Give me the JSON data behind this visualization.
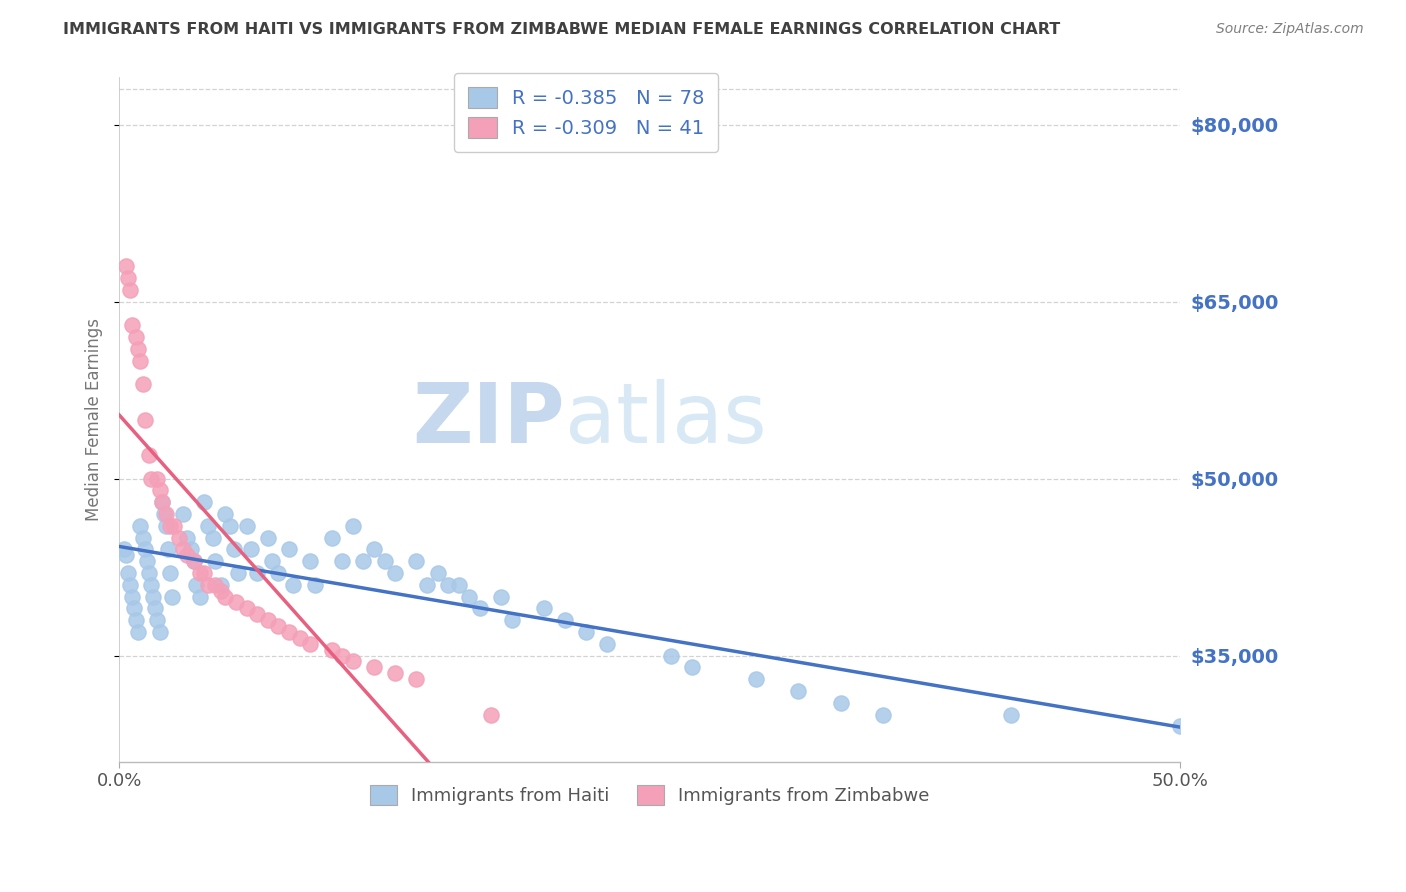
{
  "title": "IMMIGRANTS FROM HAITI VS IMMIGRANTS FROM ZIMBABWE MEDIAN FEMALE EARNINGS CORRELATION CHART",
  "source": "Source: ZipAtlas.com",
  "ylabel": "Median Female Earnings",
  "haiti_label": "Immigrants from Haiti",
  "zimbabwe_label": "Immigrants from Zimbabwe",
  "haiti_R": -0.385,
  "haiti_N": 78,
  "zimbabwe_R": -0.309,
  "zimbabwe_N": 41,
  "haiti_color": "#a8c8e8",
  "zimbabwe_color": "#f4a0b8",
  "haiti_line_color": "#4472c4",
  "zimbabwe_line_color": "#e86080",
  "background_color": "#ffffff",
  "grid_color": "#c8c8c8",
  "right_label_color": "#4472c4",
  "title_color": "#404040",
  "source_color": "#808080",
  "xlim": [
    0.0,
    0.5
  ],
  "ylim": [
    26000,
    84000
  ],
  "yticks": [
    35000,
    50000,
    65000,
    80000
  ],
  "xticks": [
    0.0,
    0.5
  ],
  "xtick_labels": [
    "0.0%",
    "50.0%"
  ],
  "haiti_x": [
    0.002,
    0.003,
    0.004,
    0.005,
    0.006,
    0.007,
    0.008,
    0.009,
    0.01,
    0.011,
    0.012,
    0.013,
    0.014,
    0.015,
    0.016,
    0.017,
    0.018,
    0.019,
    0.02,
    0.021,
    0.022,
    0.023,
    0.024,
    0.025,
    0.03,
    0.032,
    0.034,
    0.035,
    0.036,
    0.038,
    0.04,
    0.042,
    0.044,
    0.045,
    0.048,
    0.05,
    0.052,
    0.054,
    0.056,
    0.06,
    0.062,
    0.065,
    0.07,
    0.072,
    0.075,
    0.08,
    0.082,
    0.09,
    0.092,
    0.1,
    0.105,
    0.11,
    0.115,
    0.12,
    0.125,
    0.13,
    0.14,
    0.145,
    0.15,
    0.155,
    0.16,
    0.165,
    0.17,
    0.18,
    0.185,
    0.2,
    0.21,
    0.22,
    0.23,
    0.26,
    0.27,
    0.3,
    0.32,
    0.34,
    0.36,
    0.42,
    0.5
  ],
  "haiti_y": [
    44000,
    43500,
    42000,
    41000,
    40000,
    39000,
    38000,
    37000,
    46000,
    45000,
    44000,
    43000,
    42000,
    41000,
    40000,
    39000,
    38000,
    37000,
    48000,
    47000,
    46000,
    44000,
    42000,
    40000,
    47000,
    45000,
    44000,
    43000,
    41000,
    40000,
    48000,
    46000,
    45000,
    43000,
    41000,
    47000,
    46000,
    44000,
    42000,
    46000,
    44000,
    42000,
    45000,
    43000,
    42000,
    44000,
    41000,
    43000,
    41000,
    45000,
    43000,
    46000,
    43000,
    44000,
    43000,
    42000,
    43000,
    41000,
    42000,
    41000,
    41000,
    40000,
    39000,
    40000,
    38000,
    39000,
    38000,
    37000,
    36000,
    35000,
    34000,
    33000,
    32000,
    31000,
    30000,
    30000,
    29000
  ],
  "zimbabwe_x": [
    0.003,
    0.004,
    0.005,
    0.006,
    0.008,
    0.009,
    0.01,
    0.011,
    0.012,
    0.014,
    0.015,
    0.018,
    0.019,
    0.02,
    0.022,
    0.024,
    0.026,
    0.028,
    0.03,
    0.032,
    0.035,
    0.038,
    0.04,
    0.042,
    0.045,
    0.048,
    0.05,
    0.055,
    0.06,
    0.065,
    0.07,
    0.075,
    0.08,
    0.085,
    0.09,
    0.1,
    0.105,
    0.11,
    0.12,
    0.13,
    0.14,
    0.175
  ],
  "zimbabwe_y": [
    68000,
    67000,
    66000,
    63000,
    62000,
    61000,
    60000,
    58000,
    55000,
    52000,
    50000,
    50000,
    49000,
    48000,
    47000,
    46000,
    46000,
    45000,
    44000,
    43500,
    43000,
    42000,
    42000,
    41000,
    41000,
    40500,
    40000,
    39500,
    39000,
    38500,
    38000,
    37500,
    37000,
    36500,
    36000,
    35500,
    35000,
    34500,
    34000,
    33500,
    33000,
    30000
  ],
  "watermark_zip": "ZIP",
  "watermark_atlas": "atlas",
  "watermark_color": "#dce8f5"
}
